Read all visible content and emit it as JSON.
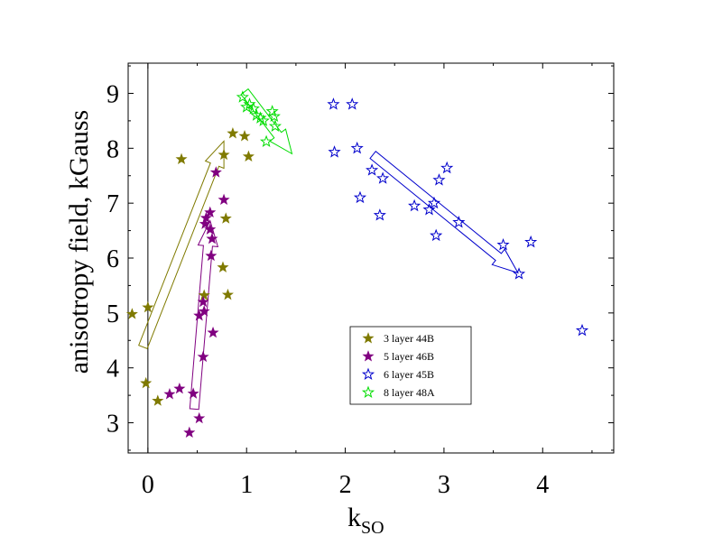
{
  "chart_data": {
    "type": "scatter",
    "title": "",
    "xlabel": "k",
    "xlabel_sub": "SO",
    "ylabel": "anisotropy field, kGauss",
    "xlim": [
      -0.2,
      4.72
    ],
    "ylim": [
      2.45,
      9.55
    ],
    "xticks": [
      0,
      1,
      2,
      3,
      4
    ],
    "yticks": [
      3,
      4,
      5,
      6,
      7,
      8,
      9
    ],
    "grid": false,
    "legend_position": "lower-center",
    "vertical_line_x": 0,
    "series": [
      {
        "name": "3 layer 44B",
        "color": "#7f7a00",
        "marker": "filled-star",
        "points": [
          [
            -0.16,
            4.98
          ],
          [
            0.0,
            5.1
          ],
          [
            -0.02,
            3.72
          ],
          [
            0.1,
            3.4
          ],
          [
            0.34,
            7.8
          ],
          [
            0.57,
            5.32
          ],
          [
            0.76,
            5.83
          ],
          [
            0.81,
            5.33
          ],
          [
            0.79,
            6.72
          ],
          [
            0.77,
            7.88
          ],
          [
            0.86,
            8.27
          ],
          [
            0.98,
            8.22
          ],
          [
            1.02,
            7.85
          ]
        ]
      },
      {
        "name": "5 layer 46B",
        "color": "#800080",
        "marker": "filled-star",
        "points": [
          [
            0.42,
            2.82
          ],
          [
            0.52,
            3.08
          ],
          [
            0.46,
            3.53
          ],
          [
            0.22,
            3.52
          ],
          [
            0.32,
            3.62
          ],
          [
            0.56,
            4.2
          ],
          [
            0.66,
            4.64
          ],
          [
            0.52,
            4.95
          ],
          [
            0.57,
            5.03
          ],
          [
            0.56,
            5.2
          ],
          [
            0.64,
            6.04
          ],
          [
            0.65,
            6.35
          ],
          [
            0.63,
            6.52
          ],
          [
            0.58,
            6.62
          ],
          [
            0.59,
            6.73
          ],
          [
            0.63,
            6.83
          ],
          [
            0.77,
            7.06
          ],
          [
            0.69,
            7.56
          ]
        ]
      },
      {
        "name": "6 layer 45B",
        "color": "#0000cc",
        "marker": "open-star",
        "points": [
          [
            1.88,
            8.8
          ],
          [
            2.07,
            8.8
          ],
          [
            1.89,
            7.93
          ],
          [
            2.12,
            8.0
          ],
          [
            2.15,
            7.1
          ],
          [
            2.27,
            7.6
          ],
          [
            2.38,
            7.45
          ],
          [
            2.35,
            6.78
          ],
          [
            2.7,
            6.95
          ],
          [
            2.85,
            6.88
          ],
          [
            2.9,
            7.0
          ],
          [
            2.92,
            6.41
          ],
          [
            2.95,
            7.42
          ],
          [
            3.03,
            7.64
          ],
          [
            3.15,
            6.65
          ],
          [
            3.6,
            6.24
          ],
          [
            3.76,
            5.71
          ],
          [
            3.88,
            6.29
          ],
          [
            4.4,
            4.68
          ]
        ]
      },
      {
        "name": "8 layer 48A",
        "color": "#00dd00",
        "marker": "open-star",
        "points": [
          [
            0.96,
            8.93
          ],
          [
            1.0,
            8.75
          ],
          [
            1.03,
            8.8
          ],
          [
            1.07,
            8.72
          ],
          [
            1.1,
            8.6
          ],
          [
            1.14,
            8.55
          ],
          [
            1.17,
            8.5
          ],
          [
            1.2,
            8.12
          ],
          [
            1.26,
            8.67
          ],
          [
            1.28,
            8.58
          ],
          [
            1.29,
            8.4
          ]
        ]
      }
    ],
    "arrows": [
      {
        "series": "3 layer 44B",
        "color": "#7f7a00",
        "from": [
          -0.05,
          4.38
        ],
        "to": [
          0.77,
          8.13
        ]
      },
      {
        "series": "5 layer 46B",
        "color": "#800080",
        "from": [
          0.47,
          3.25
        ],
        "to": [
          0.63,
          6.68
        ]
      },
      {
        "series": "6 layer 45B",
        "color": "#0000cc",
        "from": [
          2.28,
          7.88
        ],
        "to": [
          3.75,
          5.73
        ]
      },
      {
        "series": "8 layer 48A",
        "color": "#00dd00",
        "from": [
          0.98,
          9.03
        ],
        "to": [
          1.46,
          7.9
        ]
      }
    ]
  }
}
